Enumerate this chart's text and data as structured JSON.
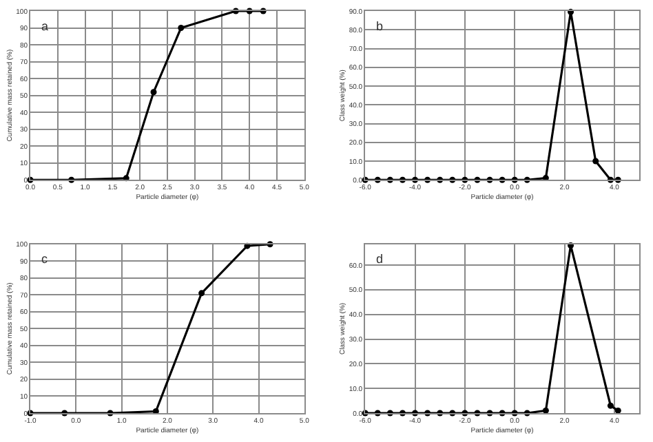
{
  "chart_data": [
    {
      "type": "line",
      "title": "a",
      "xlabel": "Particle diameter (φ)",
      "ylabel": "Cumulative mass retained (%)",
      "grid": true,
      "marker": "circle",
      "line_style": "solid",
      "xlim": [
        0,
        5
      ],
      "xticks": [
        {
          "value": 0,
          "label": "0.0"
        },
        0.5,
        {
          "value": 1,
          "label": "1.0"
        },
        1.5,
        {
          "value": 2,
          "label": "2.0"
        },
        2.5,
        {
          "value": 3,
          "label": "3.0"
        },
        3.5,
        {
          "value": 4,
          "label": "4.0"
        },
        4.5,
        {
          "value": 5,
          "label": "5.0"
        }
      ],
      "ylim": [
        0,
        100
      ],
      "yticks": [
        0,
        10,
        20,
        30,
        40,
        50,
        60,
        70,
        80,
        90,
        100
      ],
      "series": [
        {
          "color": "#000000",
          "x": [
            0,
            0.75,
            1.75,
            2.25,
            2.75,
            3.75,
            4.0,
            4.25
          ],
          "values": [
            0,
            0,
            1,
            52,
            90,
            100,
            100,
            100
          ]
        }
      ]
    },
    {
      "type": "line",
      "title": "b",
      "xlabel": "Particle diameter (φ)",
      "ylabel": "Class weight (%)",
      "grid": true,
      "marker": "circle",
      "line_style": "solid",
      "xlim": [
        -6,
        5
      ],
      "xticks": [
        {
          "value": -6,
          "label": "-6.0"
        },
        {
          "value": -4,
          "label": "-4.0"
        },
        {
          "value": -2,
          "label": "-2.0"
        },
        {
          "value": 0,
          "label": "0.0"
        },
        {
          "value": 2,
          "label": "2.0"
        },
        {
          "value": 4,
          "label": "4.0"
        }
      ],
      "ylim": [
        0,
        90
      ],
      "yticks": [
        {
          "value": 0,
          "label": "0.0"
        },
        {
          "value": 10,
          "label": "10.0"
        },
        {
          "value": 20,
          "label": "20.0"
        },
        {
          "value": 30,
          "label": "30.0"
        },
        {
          "value": 40,
          "label": "40.0"
        },
        {
          "value": 50,
          "label": "50.0"
        },
        {
          "value": 60,
          "label": "60.0"
        },
        {
          "value": 70,
          "label": "70.0"
        },
        {
          "value": 80,
          "label": "80.0"
        },
        {
          "value": 90,
          "label": "90.0"
        }
      ],
      "series": [
        {
          "color": "#000000",
          "x": [
            -6,
            -5.5,
            -5,
            -4.5,
            -4,
            -3.5,
            -3,
            -2.5,
            -2,
            -1.5,
            -1,
            -0.5,
            0,
            0.5,
            1.25,
            2.25,
            3.25,
            3.85,
            4.15
          ],
          "values": [
            0,
            0,
            0,
            0,
            0,
            0,
            0,
            0,
            0,
            0,
            0,
            0,
            0,
            0,
            1,
            89.5,
            10,
            0,
            0
          ]
        }
      ]
    },
    {
      "type": "line",
      "title": "c",
      "xlabel": "Particle diameter (φ)",
      "ylabel": "Cumulative mass retained (%)",
      "grid": true,
      "marker": "circle",
      "line_style": "solid",
      "xlim": [
        -1,
        5
      ],
      "xticks": [
        {
          "value": -1,
          "label": "-1.0"
        },
        {
          "value": 0,
          "label": "0.0"
        },
        {
          "value": 1,
          "label": "1.0"
        },
        {
          "value": 2,
          "label": "2.0"
        },
        {
          "value": 3,
          "label": "3.0"
        },
        {
          "value": 4,
          "label": "4.0"
        },
        {
          "value": 5,
          "label": "5.0"
        }
      ],
      "ylim": [
        0,
        100
      ],
      "yticks": [
        0,
        10,
        20,
        30,
        40,
        50,
        60,
        70,
        80,
        90,
        100
      ],
      "series": [
        {
          "color": "#000000",
          "x": [
            -1,
            -0.25,
            0.75,
            1.75,
            2.75,
            3.75,
            4.25
          ],
          "values": [
            0,
            0,
            0,
            1,
            71,
            99,
            100
          ]
        }
      ]
    },
    {
      "type": "line",
      "title": "d",
      "xlabel": "Particle diameter (φ)",
      "ylabel": "Class weight (%)",
      "grid": true,
      "marker": "circle",
      "line_style": "solid",
      "xlim": [
        -6,
        5
      ],
      "xticks": [
        {
          "value": -6,
          "label": "-6.0"
        },
        {
          "value": -4,
          "label": "-4.0"
        },
        {
          "value": -2,
          "label": "-2.0"
        },
        {
          "value": 0,
          "label": "0.0"
        },
        {
          "value": 2,
          "label": "2.0"
        },
        {
          "value": 4,
          "label": "4.0"
        }
      ],
      "ylim": [
        0,
        68.5
      ],
      "yticks": [
        {
          "value": 0,
          "label": "0.0"
        },
        {
          "value": 10,
          "label": "10.0"
        },
        {
          "value": 20,
          "label": "20.0"
        },
        {
          "value": 30,
          "label": "30.0"
        },
        {
          "value": 40,
          "label": "40.0"
        },
        {
          "value": 50,
          "label": "50.0"
        },
        {
          "value": 60,
          "label": "60.0"
        }
      ],
      "series": [
        {
          "color": "#000000",
          "x": [
            -6,
            -5.5,
            -5,
            -4.5,
            -4,
            -3.5,
            -3,
            -2.5,
            -2,
            -1.5,
            -1,
            -0.5,
            0,
            0.5,
            1.25,
            2.25,
            3.85,
            4.15
          ],
          "values": [
            0,
            0,
            0,
            0,
            0,
            0,
            0,
            0,
            0,
            0,
            0,
            0,
            0,
            0,
            1,
            68,
            3,
            1
          ]
        }
      ]
    }
  ]
}
